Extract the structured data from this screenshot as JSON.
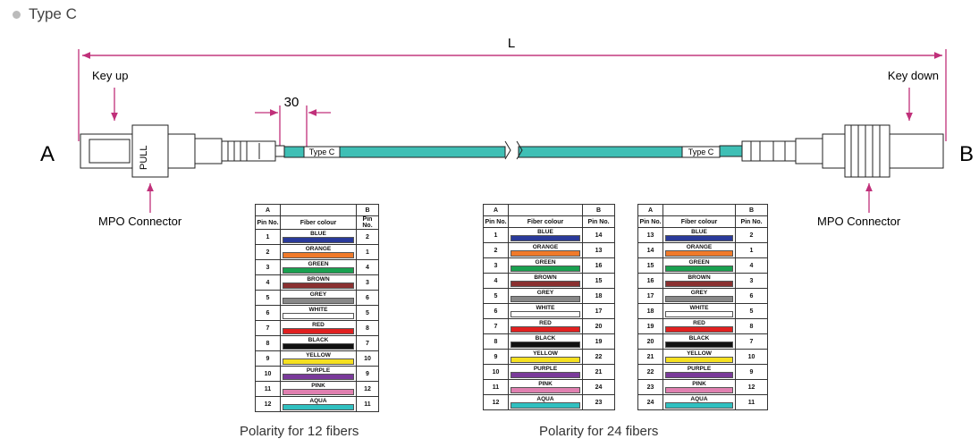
{
  "header": {
    "title": "Type C"
  },
  "diagram": {
    "length_label": "L",
    "offset_label": "30",
    "end_a": "A",
    "end_b": "B",
    "key_a": "Key up",
    "key_b": "Key down",
    "connector_a": "MPO Connector",
    "connector_b": "MPO Connector",
    "pull_label": "PULL",
    "tag_a": "Type C",
    "tag_b": "Type C"
  },
  "tables": [
    {
      "columns": {
        "a": "A",
        "b": "B",
        "pin_a": "Pin No.",
        "fiber": "Fiber colour",
        "pin_b": "Pin No."
      },
      "rows": [
        [
          1,
          "BLUE",
          2
        ],
        [
          2,
          "ORANGE",
          1
        ],
        [
          3,
          "GREEN",
          4
        ],
        [
          4,
          "BROWN",
          3
        ],
        [
          5,
          "GREY",
          6
        ],
        [
          6,
          "WHITE",
          5
        ],
        [
          7,
          "RED",
          8
        ],
        [
          8,
          "BLACK",
          7
        ],
        [
          9,
          "YELLOW",
          10
        ],
        [
          10,
          "PURPLE",
          9
        ],
        [
          11,
          "PINK",
          12
        ],
        [
          12,
          "AQUA",
          11
        ]
      ]
    },
    {
      "columns": {
        "a": "A",
        "b": "B",
        "pin_a": "Pin No.",
        "fiber": "Fiber colour",
        "pin_b": "Pin No."
      },
      "rows": [
        [
          1,
          "BLUE",
          14
        ],
        [
          2,
          "ORANGE",
          13
        ],
        [
          3,
          "GREEN",
          16
        ],
        [
          4,
          "BROWN",
          15
        ],
        [
          5,
          "GREY",
          18
        ],
        [
          6,
          "WHITE",
          17
        ],
        [
          7,
          "RED",
          20
        ],
        [
          8,
          "BLACK",
          19
        ],
        [
          9,
          "YELLOW",
          22
        ],
        [
          10,
          "PURPLE",
          21
        ],
        [
          11,
          "PINK",
          24
        ],
        [
          12,
          "AQUA",
          23
        ]
      ]
    },
    {
      "columns": {
        "a": "A",
        "b": "B",
        "pin_a": "Pin No.",
        "fiber": "Fiber colour",
        "pin_b": "Pin No."
      },
      "rows": [
        [
          13,
          "BLUE",
          2
        ],
        [
          14,
          "ORANGE",
          1
        ],
        [
          15,
          "GREEN",
          4
        ],
        [
          16,
          "BROWN",
          3
        ],
        [
          17,
          "GREY",
          6
        ],
        [
          18,
          "WHITE",
          5
        ],
        [
          19,
          "RED",
          8
        ],
        [
          20,
          "BLACK",
          7
        ],
        [
          21,
          "YELLOW",
          10
        ],
        [
          22,
          "PURPLE",
          9
        ],
        [
          23,
          "PINK",
          12
        ],
        [
          24,
          "AQUA",
          11
        ]
      ]
    }
  ],
  "captions": [
    "Polarity for 12 fibers",
    "Polarity for 24 fibers"
  ]
}
